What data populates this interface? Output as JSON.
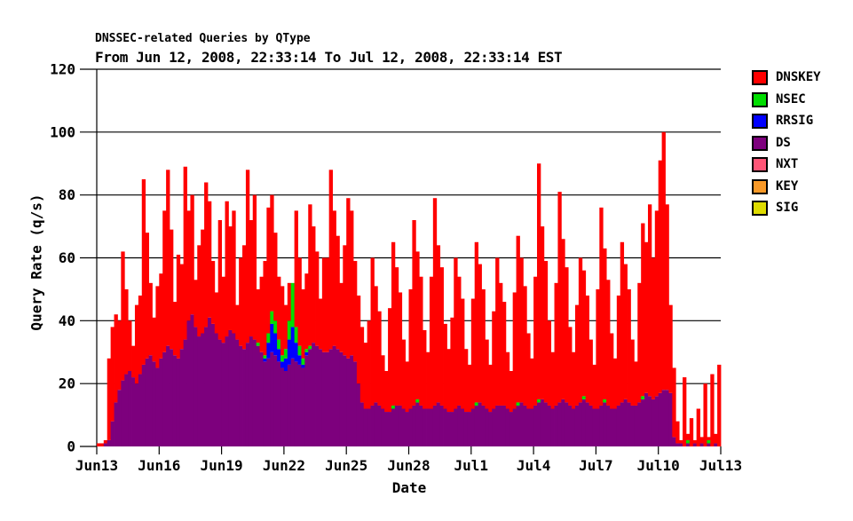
{
  "chart_data": {
    "type": "bar",
    "stacked": true,
    "title": "DNSSEC-related Queries by QType",
    "subtitle": "From Jun 12, 2008, 22:33:14 To Jul 12, 2008, 22:33:14 EST",
    "xlabel": "Date",
    "ylabel": "Query Rate (q/s)",
    "ylim": [
      0,
      120
    ],
    "yticks": [
      0,
      20,
      40,
      60,
      80,
      100,
      120
    ],
    "xticks": [
      "Jun13",
      "Jun16",
      "Jun19",
      "Jun22",
      "Jun25",
      "Jun28",
      "Jul1",
      "Jul4",
      "Jul7",
      "Jul10",
      "Jul13"
    ],
    "grid": "horizontal-black-lines-behind-bars",
    "legend_position": "right",
    "legend": [
      {
        "label": "DNSKEY",
        "color": "#FF0000"
      },
      {
        "label": "NSEC",
        "color": "#00DD00"
      },
      {
        "label": "RRSIG",
        "color": "#0000FF"
      },
      {
        "label": "DS",
        "color": "#7D007D"
      },
      {
        "label": "NXT",
        "color": "#FF5577"
      },
      {
        "label": "KEY",
        "color": "#FA9A28"
      },
      {
        "label": "SIG",
        "color": "#DEDB00"
      }
    ],
    "series_with_zero_visible_values": [
      "NXT",
      "KEY",
      "SIG"
    ],
    "stack_order_bottom_to_top": [
      "DS",
      "RRSIG",
      "NSEC",
      "DNSKEY"
    ],
    "bars_format": [
      "DS",
      "RRSIG",
      "NSEC",
      "DNSKEY"
    ],
    "bars_sampling": "approx. 4-hour samples, Jun 12 22:33 through Jul 12 22:33 (30 days x 6)",
    "bars": [
      [
        0,
        0,
        0,
        1
      ],
      [
        0,
        0,
        0,
        1
      ],
      [
        1,
        0,
        0,
        1
      ],
      [
        2,
        0,
        0,
        26
      ],
      [
        8,
        0,
        0,
        30
      ],
      [
        14,
        0,
        0,
        28
      ],
      [
        18,
        0,
        0,
        22
      ],
      [
        21,
        0,
        0,
        41
      ],
      [
        23,
        0,
        0,
        27
      ],
      [
        24,
        0,
        0,
        16
      ],
      [
        22,
        0,
        0,
        10
      ],
      [
        20,
        0,
        0,
        25
      ],
      [
        23,
        0,
        0,
        25
      ],
      [
        26,
        0,
        0,
        59
      ],
      [
        28,
        0,
        0,
        40
      ],
      [
        29,
        0,
        0,
        23
      ],
      [
        27,
        0,
        0,
        14
      ],
      [
        25,
        0,
        0,
        26
      ],
      [
        28,
        0,
        0,
        27
      ],
      [
        30,
        0,
        0,
        45
      ],
      [
        32,
        0,
        0,
        56
      ],
      [
        31,
        0,
        0,
        38
      ],
      [
        29,
        0,
        0,
        17
      ],
      [
        28,
        0,
        0,
        33
      ],
      [
        31,
        0,
        0,
        27
      ],
      [
        34,
        0,
        0,
        55
      ],
      [
        40,
        0,
        0,
        35
      ],
      [
        42,
        0,
        0,
        38
      ],
      [
        38,
        0,
        0,
        15
      ],
      [
        35,
        0,
        0,
        29
      ],
      [
        36,
        0,
        0,
        33
      ],
      [
        38,
        0,
        0,
        46
      ],
      [
        41,
        0,
        0,
        37
      ],
      [
        39,
        0,
        0,
        20
      ],
      [
        36,
        0,
        0,
        13
      ],
      [
        34,
        0,
        0,
        38
      ],
      [
        33,
        0,
        0,
        21
      ],
      [
        35,
        0,
        0,
        43
      ],
      [
        37,
        0,
        0,
        33
      ],
      [
        36,
        0,
        0,
        39
      ],
      [
        34,
        0,
        0,
        11
      ],
      [
        32,
        0,
        0,
        28
      ],
      [
        31,
        0,
        0,
        33
      ],
      [
        33,
        0,
        0,
        55
      ],
      [
        35,
        0,
        0,
        37
      ],
      [
        34,
        0,
        0,
        46
      ],
      [
        32,
        0,
        1,
        17
      ],
      [
        30,
        0,
        0,
        24
      ],
      [
        27,
        1,
        1,
        30
      ],
      [
        28,
        5,
        3,
        40
      ],
      [
        30,
        9,
        4,
        37
      ],
      [
        29,
        7,
        4,
        28
      ],
      [
        27,
        4,
        3,
        20
      ],
      [
        25,
        2,
        2,
        22
      ],
      [
        24,
        4,
        3,
        14
      ],
      [
        26,
        8,
        6,
        12
      ],
      [
        28,
        10,
        14,
        0
      ],
      [
        27,
        6,
        5,
        37
      ],
      [
        26,
        3,
        3,
        28
      ],
      [
        25,
        1,
        2,
        22
      ],
      [
        29,
        1,
        1,
        24
      ],
      [
        31,
        0,
        1,
        45
      ],
      [
        33,
        0,
        0,
        37
      ],
      [
        32,
        0,
        0,
        30
      ],
      [
        31,
        0,
        0,
        16
      ],
      [
        30,
        0,
        0,
        30
      ],
      [
        30,
        0,
        0,
        30
      ],
      [
        31,
        0,
        0,
        57
      ],
      [
        32,
        0,
        0,
        43
      ],
      [
        31,
        0,
        0,
        36
      ],
      [
        30,
        0,
        0,
        22
      ],
      [
        29,
        0,
        0,
        35
      ],
      [
        28,
        0,
        0,
        51
      ],
      [
        29,
        0,
        0,
        46
      ],
      [
        27,
        0,
        0,
        32
      ],
      [
        20,
        0,
        0,
        28
      ],
      [
        14,
        0,
        0,
        24
      ],
      [
        12,
        0,
        0,
        21
      ],
      [
        12,
        0,
        0,
        28
      ],
      [
        13,
        0,
        0,
        47
      ],
      [
        14,
        0,
        0,
        37
      ],
      [
        13,
        0,
        0,
        30
      ],
      [
        12,
        0,
        0,
        17
      ],
      [
        11,
        0,
        0,
        13
      ],
      [
        11,
        0,
        0,
        33
      ],
      [
        12,
        0,
        1,
        52
      ],
      [
        13,
        0,
        0,
        44
      ],
      [
        13,
        0,
        0,
        36
      ],
      [
        12,
        0,
        0,
        22
      ],
      [
        11,
        0,
        0,
        16
      ],
      [
        12,
        0,
        0,
        38
      ],
      [
        13,
        0,
        0,
        59
      ],
      [
        14,
        0,
        1,
        47
      ],
      [
        13,
        0,
        0,
        41
      ],
      [
        12,
        0,
        0,
        25
      ],
      [
        12,
        0,
        0,
        18
      ],
      [
        12,
        0,
        0,
        42
      ],
      [
        13,
        0,
        0,
        66
      ],
      [
        14,
        0,
        0,
        50
      ],
      [
        13,
        0,
        0,
        44
      ],
      [
        12,
        0,
        0,
        27
      ],
      [
        11,
        0,
        0,
        20
      ],
      [
        11,
        0,
        0,
        30
      ],
      [
        12,
        0,
        0,
        48
      ],
      [
        13,
        0,
        0,
        41
      ],
      [
        12,
        0,
        0,
        35
      ],
      [
        11,
        0,
        0,
        20
      ],
      [
        11,
        0,
        0,
        15
      ],
      [
        12,
        0,
        0,
        35
      ],
      [
        13,
        0,
        1,
        51
      ],
      [
        14,
        0,
        0,
        44
      ],
      [
        13,
        0,
        0,
        37
      ],
      [
        12,
        0,
        0,
        22
      ],
      [
        11,
        0,
        0,
        15
      ],
      [
        12,
        0,
        0,
        31
      ],
      [
        13,
        0,
        0,
        47
      ],
      [
        13,
        0,
        0,
        39
      ],
      [
        13,
        0,
        0,
        33
      ],
      [
        12,
        0,
        0,
        18
      ],
      [
        11,
        0,
        0,
        13
      ],
      [
        12,
        0,
        0,
        37
      ],
      [
        13,
        0,
        1,
        53
      ],
      [
        14,
        0,
        0,
        46
      ],
      [
        13,
        0,
        0,
        38
      ],
      [
        12,
        0,
        0,
        24
      ],
      [
        12,
        0,
        0,
        16
      ],
      [
        13,
        0,
        0,
        41
      ],
      [
        14,
        0,
        1,
        75
      ],
      [
        15,
        0,
        0,
        55
      ],
      [
        14,
        0,
        0,
        45
      ],
      [
        13,
        0,
        0,
        27
      ],
      [
        12,
        0,
        0,
        18
      ],
      [
        13,
        0,
        0,
        39
      ],
      [
        14,
        0,
        0,
        67
      ],
      [
        15,
        0,
        0,
        51
      ],
      [
        14,
        0,
        0,
        43
      ],
      [
        13,
        0,
        0,
        25
      ],
      [
        12,
        0,
        0,
        18
      ],
      [
        13,
        0,
        0,
        32
      ],
      [
        14,
        0,
        0,
        46
      ],
      [
        15,
        0,
        1,
        40
      ],
      [
        14,
        0,
        0,
        34
      ],
      [
        13,
        0,
        0,
        21
      ],
      [
        12,
        0,
        0,
        14
      ],
      [
        12,
        0,
        0,
        38
      ],
      [
        13,
        0,
        0,
        63
      ],
      [
        14,
        0,
        1,
        48
      ],
      [
        13,
        0,
        0,
        40
      ],
      [
        12,
        0,
        0,
        24
      ],
      [
        12,
        0,
        0,
        16
      ],
      [
        13,
        0,
        0,
        35
      ],
      [
        14,
        0,
        0,
        51
      ],
      [
        15,
        0,
        0,
        43
      ],
      [
        14,
        0,
        0,
        36
      ],
      [
        13,
        0,
        0,
        21
      ],
      [
        13,
        0,
        0,
        14
      ],
      [
        14,
        0,
        0,
        38
      ],
      [
        15,
        0,
        1,
        55
      ],
      [
        17,
        0,
        0,
        48
      ],
      [
        16,
        0,
        0,
        61
      ],
      [
        15,
        0,
        0,
        45
      ],
      [
        16,
        0,
        0,
        59
      ],
      [
        17,
        0,
        0,
        74
      ],
      [
        18,
        0,
        0,
        82
      ],
      [
        18,
        0,
        0,
        59
      ],
      [
        17,
        0,
        0,
        28
      ],
      [
        3,
        0,
        0,
        22
      ],
      [
        1,
        0,
        0,
        7
      ],
      [
        1,
        0,
        0,
        1
      ],
      [
        0,
        0,
        0,
        22
      ],
      [
        1,
        0,
        1,
        2
      ],
      [
        0,
        0,
        0,
        9
      ],
      [
        1,
        0,
        0,
        1
      ],
      [
        0,
        0,
        0,
        12
      ],
      [
        1,
        0,
        0,
        2
      ],
      [
        0,
        0,
        0,
        20
      ],
      [
        1,
        0,
        1,
        1
      ],
      [
        0,
        0,
        0,
        23
      ],
      [
        1,
        0,
        0,
        3
      ],
      [
        0,
        0,
        0,
        26
      ]
    ]
  }
}
